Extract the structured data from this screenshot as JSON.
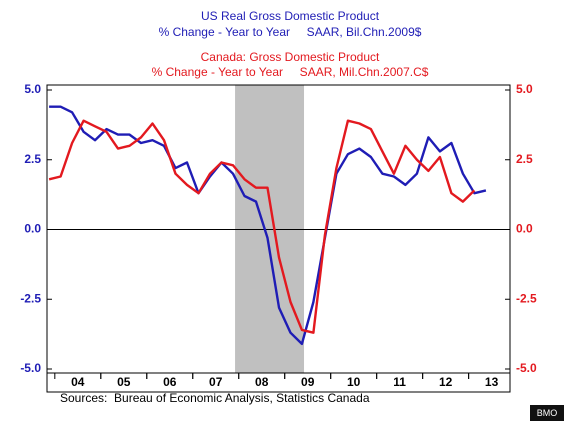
{
  "chart_data": {
    "type": "line",
    "x": [
      2003.875,
      2004.125,
      2004.375,
      2004.625,
      2004.875,
      2005.125,
      2005.375,
      2005.625,
      2005.875,
      2006.125,
      2006.375,
      2006.625,
      2006.875,
      2007.125,
      2007.375,
      2007.625,
      2007.875,
      2008.125,
      2008.375,
      2008.625,
      2008.875,
      2009.125,
      2009.375,
      2009.625,
      2009.875,
      2010.125,
      2010.375,
      2010.625,
      2010.875,
      2011.125,
      2011.375,
      2011.625,
      2011.875,
      2012.125,
      2012.375,
      2012.625,
      2012.875,
      2013.125,
      2013.375
    ],
    "series": [
      {
        "name": "US Real Gross Domestic Product",
        "subtitle": "% Change - Year to Year     SAAR, Bil.Chn.2009$",
        "color": "#1f1db5",
        "values": [
          4.4,
          4.4,
          4.2,
          3.5,
          3.2,
          3.6,
          3.4,
          3.4,
          3.1,
          3.2,
          3.0,
          2.2,
          2.4,
          1.3,
          1.9,
          2.4,
          2.0,
          1.2,
          1.0,
          -0.3,
          -2.8,
          -3.7,
          -4.1,
          -2.6,
          -0.3,
          2.0,
          2.7,
          2.9,
          2.6,
          2.0,
          1.9,
          1.6,
          2.0,
          3.3,
          2.8,
          3.1,
          2.0,
          1.3,
          1.4
        ]
      },
      {
        "name": "Canada: Gross Domestic Product",
        "subtitle": "% Change - Year to Year     SAAR, Mil.Chn.2007.C$",
        "color": "#e3191f",
        "axis": "y2",
        "values": [
          1.8,
          1.9,
          3.1,
          3.9,
          3.7,
          3.5,
          2.9,
          3.0,
          3.3,
          3.8,
          3.2,
          2.0,
          1.6,
          1.3,
          2.0,
          2.4,
          2.3,
          1.8,
          1.5,
          1.5,
          -1.0,
          -2.6,
          -3.6,
          -3.7,
          -0.2,
          2.2,
          3.9,
          3.8,
          3.6,
          2.8,
          2.0,
          3.0,
          2.5,
          2.1,
          2.6,
          1.3,
          1.0,
          1.4,
          null
        ]
      }
    ],
    "xlim": [
      2003.83,
      2013.9
    ],
    "xticks": [
      {
        "value": 2004.5,
        "label": "04"
      },
      {
        "value": 2005.5,
        "label": "05"
      },
      {
        "value": 2006.5,
        "label": "06"
      },
      {
        "value": 2007.5,
        "label": "07"
      },
      {
        "value": 2008.5,
        "label": "08"
      },
      {
        "value": 2009.5,
        "label": "09"
      },
      {
        "value": 2010.5,
        "label": "10"
      },
      {
        "value": 2011.5,
        "label": "11"
      },
      {
        "value": 2012.5,
        "label": "12"
      },
      {
        "value": 2013.5,
        "label": "13"
      }
    ],
    "ylim": [
      -5,
      5
    ],
    "yticks": [
      {
        "value": 5,
        "label": "5.0"
      },
      {
        "value": 2.5,
        "label": "2.5"
      },
      {
        "value": 0,
        "label": "0.0"
      },
      {
        "value": -2.5,
        "label": "-2.5"
      },
      {
        "value": -5,
        "label": "-5.0"
      }
    ],
    "y2lim": [
      -5,
      5
    ],
    "y2ticks": [
      {
        "value": 5,
        "label": "5.0"
      },
      {
        "value": 2.5,
        "label": "2.5"
      },
      {
        "value": 0,
        "label": "0.0"
      },
      {
        "value": -2.5,
        "label": "-2.5"
      },
      {
        "value": -5,
        "label": "-5.0"
      }
    ],
    "shaded_region": [
      2007.92,
      2009.42
    ],
    "source": "Sources:  Bureau of Economic Analysis, Statistics Canada",
    "watermark": "BMO"
  }
}
